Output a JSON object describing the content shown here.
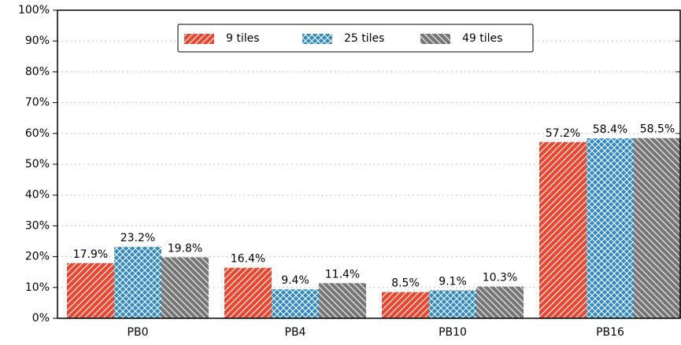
{
  "chart_data": {
    "type": "bar",
    "categories": [
      "PB0",
      "PB4",
      "PB10",
      "PB16"
    ],
    "series": [
      {
        "name": "9 tiles",
        "color": "#e24a33",
        "hatch": "///",
        "values": [
          17.9,
          16.4,
          8.5,
          57.2
        ],
        "value_labels": [
          "17.9%",
          "16.4%",
          "8.5%",
          "57.2%"
        ]
      },
      {
        "name": "25 tiles",
        "color": "#348abd",
        "hatch": "xx",
        "values": [
          23.2,
          9.4,
          9.1,
          58.4
        ],
        "value_labels": [
          "23.2%",
          "9.4%",
          "9.1%",
          "58.4%"
        ]
      },
      {
        "name": "49 tiles",
        "color": "#777777",
        "hatch": "\\\\",
        "values": [
          19.8,
          11.4,
          10.3,
          58.5
        ],
        "value_labels": [
          "19.8%",
          "11.4%",
          "10.3%",
          "58.5%"
        ]
      }
    ],
    "ylim": [
      0,
      100
    ],
    "yticks": [
      {
        "value": 0,
        "label": "0%"
      },
      {
        "value": 10,
        "label": "10%"
      },
      {
        "value": 20,
        "label": "20%"
      },
      {
        "value": 30,
        "label": "30%"
      },
      {
        "value": 40,
        "label": "40%"
      },
      {
        "value": 50,
        "label": "50%"
      },
      {
        "value": 60,
        "label": "60%"
      },
      {
        "value": 70,
        "label": "70%"
      },
      {
        "value": 80,
        "label": "80%"
      },
      {
        "value": 90,
        "label": "90%"
      },
      {
        "value": 100,
        "label": "100%"
      }
    ],
    "grid": true,
    "legend": "upper center"
  }
}
